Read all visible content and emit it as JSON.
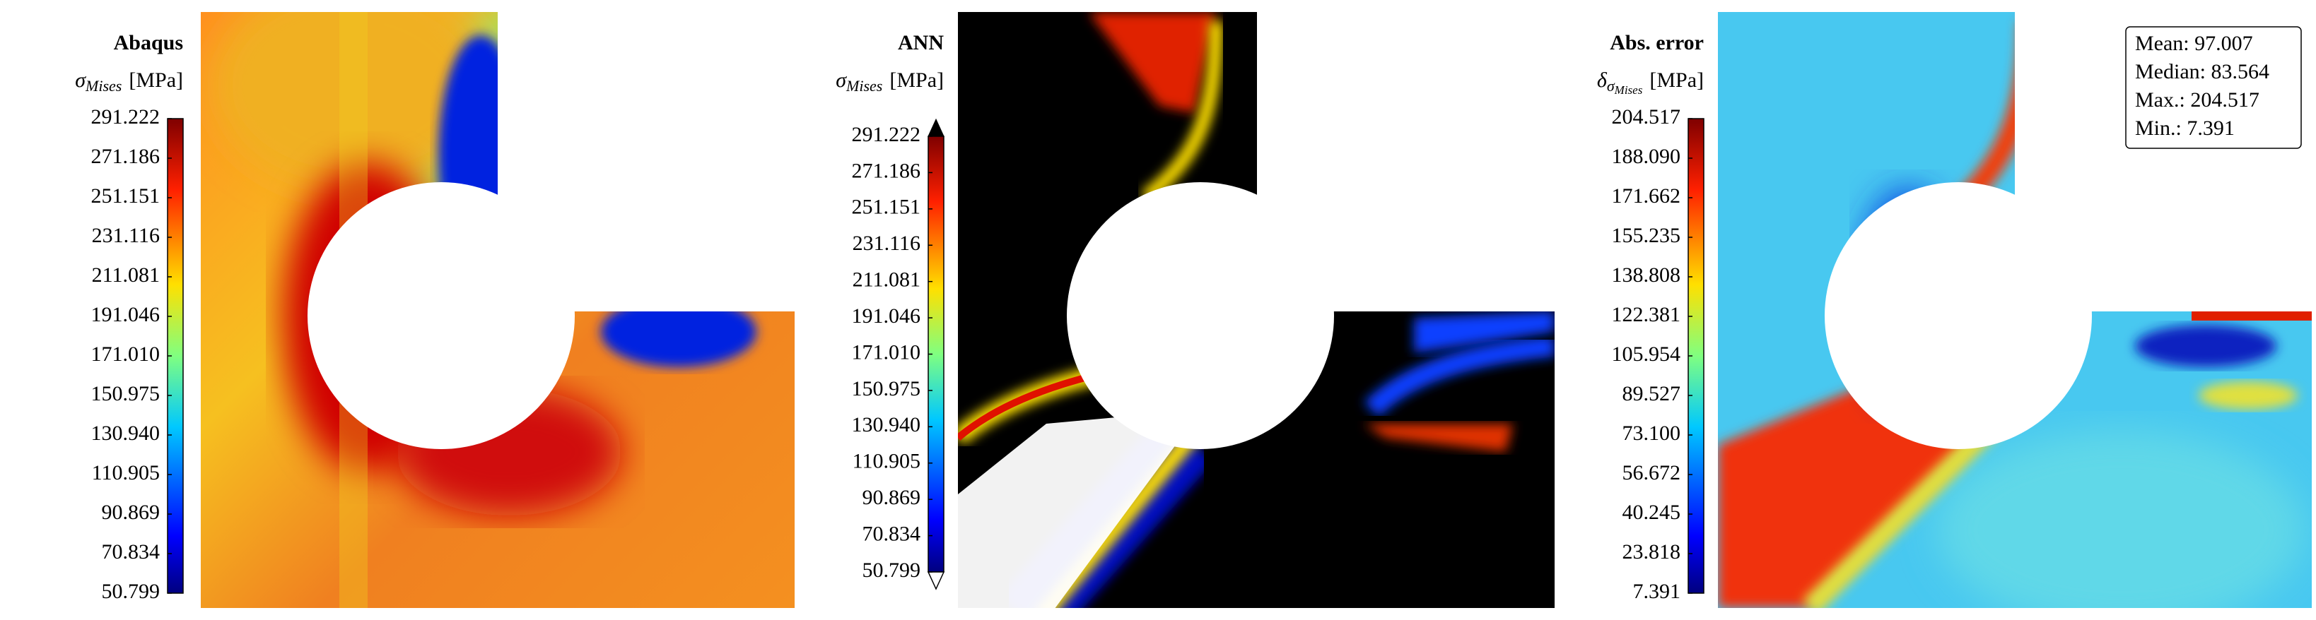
{
  "chart_data": [
    {
      "type": "heatmap",
      "title": "Abaqus",
      "label_symbol": "σ",
      "label_sub": "Mises",
      "label_unit": "[MPa]",
      "clim": [
        50.799,
        291.222
      ],
      "cticks": [
        291.222,
        271.186,
        251.151,
        231.116,
        211.081,
        191.046,
        {
          "value": 171.01,
          "label": "171.010"
        },
        150.975,
        {
          "value": 130.94,
          "label": "130.940"
        },
        110.905,
        90.869,
        70.834,
        50.799
      ]
    },
    {
      "type": "heatmap",
      "title": "ANN",
      "label_symbol": "σ",
      "label_sub": "Mises",
      "label_unit": "[MPa]",
      "clim": [
        50.799,
        291.222
      ],
      "extend": "both",
      "cticks": [
        291.222,
        271.186,
        251.151,
        231.116,
        211.081,
        191.046,
        {
          "value": 171.01,
          "label": "171.010"
        },
        150.975,
        {
          "value": 130.94,
          "label": "130.940"
        },
        110.905,
        90.869,
        70.834,
        50.799
      ]
    },
    {
      "type": "heatmap",
      "title": "Abs. error",
      "label_symbol": "δ",
      "label_sub": "σ",
      "label_subsub": "Mises",
      "label_unit": "[MPa]",
      "clim": [
        7.391,
        204.517
      ],
      "cticks": [
        204.517,
        {
          "value": 188.09,
          "label": "188.090"
        },
        171.662,
        155.235,
        138.808,
        122.381,
        105.954,
        89.527,
        {
          "value": 73.1,
          "label": "73.100"
        },
        56.672,
        40.245,
        23.818,
        7.391
      ],
      "annotations": [
        "Mean: 97.007",
        "Median: 83.564",
        "Max.: 204.517",
        "Min.: 7.391"
      ]
    }
  ]
}
